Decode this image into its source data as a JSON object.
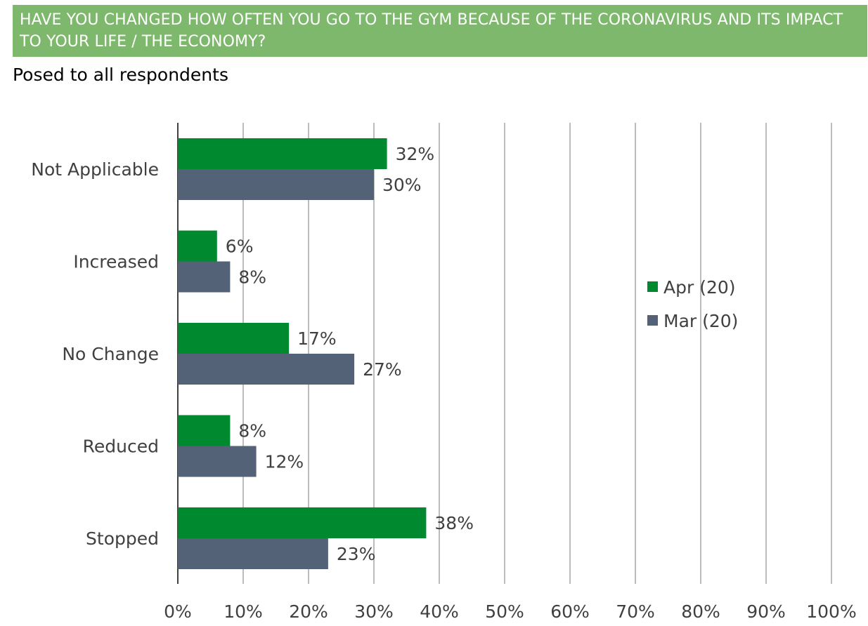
{
  "header": {
    "question": "HAVE YOU CHANGED HOW OFTEN YOU GO TO THE GYM BECAUSE OF THE CORONAVIRUS AND ITS IMPACT TO YOUR LIFE / THE ECONOMY?",
    "subtitle": "Posed to all respondents"
  },
  "colors": {
    "banner": "#7eb86c",
    "apr": "#00892f",
    "mar": "#536276",
    "grid": "#a6a6a6",
    "axis": "#000000",
    "text": "#404040"
  },
  "chart_data": {
    "type": "bar",
    "orientation": "horizontal",
    "categories": [
      "Not Applicable",
      "Increased",
      "No Change",
      "Reduced",
      "Stopped"
    ],
    "series": [
      {
        "name": "Apr (20)",
        "values": [
          32,
          6,
          17,
          8,
          38
        ],
        "labels": [
          "32%",
          "6%",
          "17%",
          "8%",
          "38%"
        ]
      },
      {
        "name": "Mar (20)",
        "values": [
          30,
          8,
          27,
          12,
          23
        ],
        "labels": [
          "30%",
          "8%",
          "27%",
          "12%",
          "23%"
        ]
      }
    ],
    "xlim": [
      0,
      100
    ],
    "xticks": [
      "0%",
      "10%",
      "20%",
      "30%",
      "40%",
      "50%",
      "60%",
      "70%",
      "80%",
      "90%",
      "100%"
    ],
    "grid": "vertical",
    "legend": "right"
  }
}
